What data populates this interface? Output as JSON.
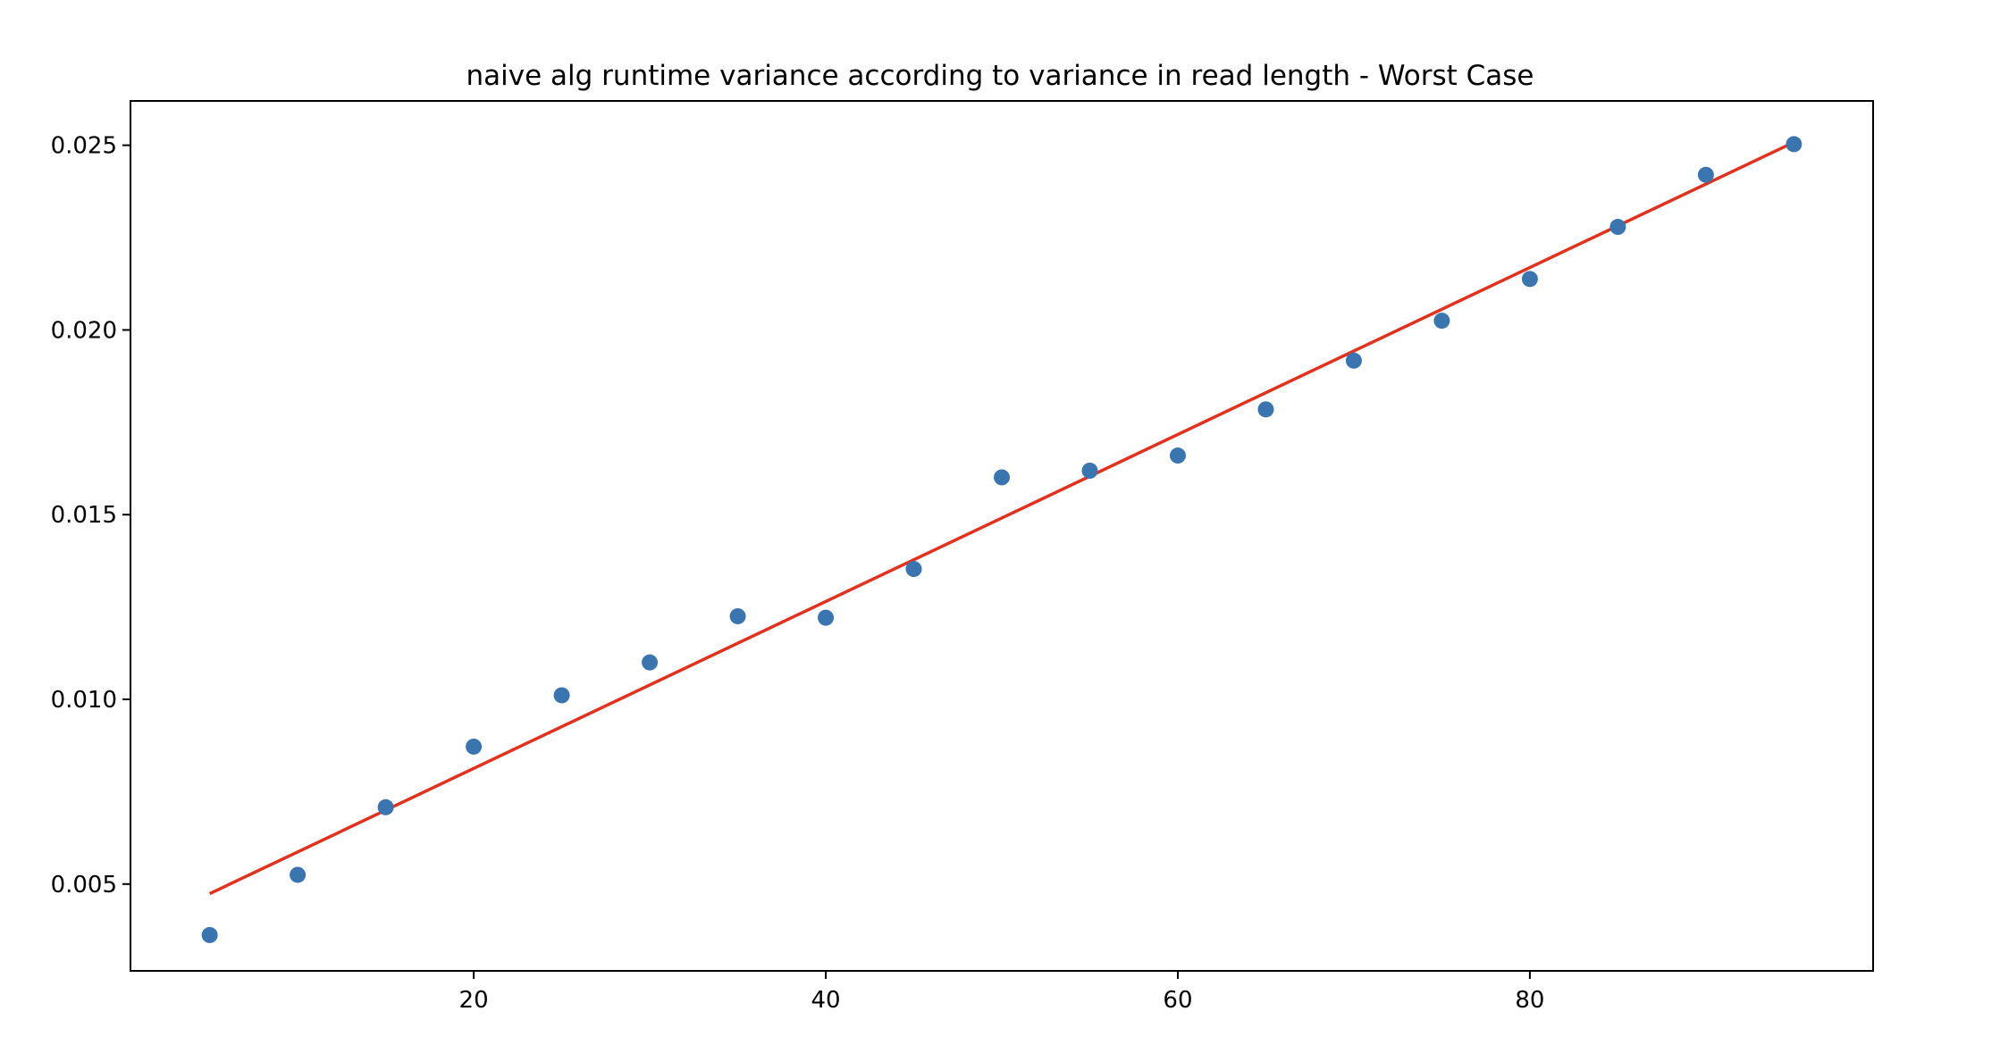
{
  "chart_data": {
    "type": "scatter",
    "title": "naive alg runtime variance according to variance in read length - Worst Case",
    "xlabel": "",
    "ylabel": "",
    "xlim": [
      0.5,
      99.5
    ],
    "ylim": [
      0.00265,
      0.0262
    ],
    "xticks": [
      20,
      40,
      60,
      80
    ],
    "xtick_labels": [
      "20",
      "40",
      "60",
      "80"
    ],
    "yticks": [
      0.005,
      0.01,
      0.015,
      0.02,
      0.025
    ],
    "ytick_labels": [
      "0.005",
      "0.010",
      "0.015",
      "0.020",
      "0.025"
    ],
    "grid": false,
    "legend": "none",
    "series": [
      {
        "kind": "scatter",
        "color": "#3a75b0",
        "x": [
          5,
          10,
          15,
          20,
          25,
          30,
          35,
          40,
          45,
          50,
          55,
          60,
          65,
          70,
          75,
          80,
          85,
          90,
          95
        ],
        "y": [
          0.00362,
          0.00525,
          0.00708,
          0.00872,
          0.01011,
          0.011,
          0.01225,
          0.01221,
          0.01353,
          0.01601,
          0.01619,
          0.0166,
          0.01785,
          0.01917,
          0.02025,
          0.02138,
          0.02279,
          0.0242,
          0.02503
        ]
      },
      {
        "kind": "line",
        "color": "#e0321e",
        "x": [
          5,
          95
        ],
        "y": [
          0.00474,
          0.02508
        ]
      }
    ]
  }
}
